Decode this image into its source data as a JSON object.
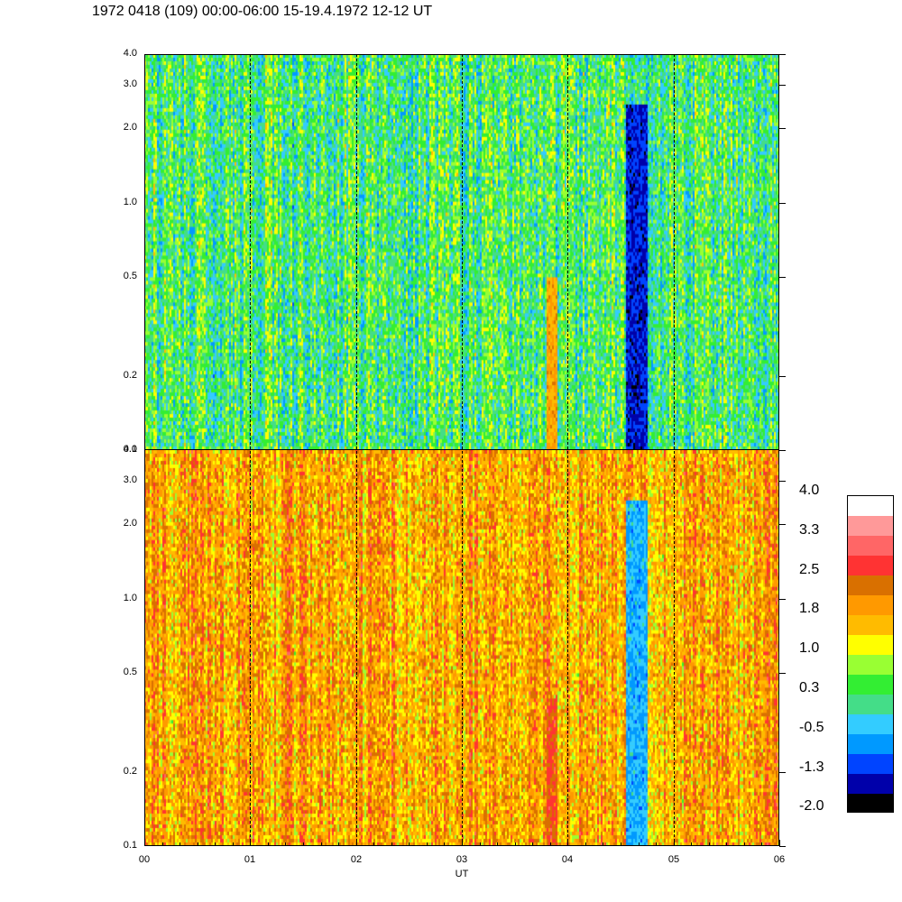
{
  "title": "1972 0418 (109) 00:00-06:00 15-19.4.1972  12-12 UT",
  "chart_data": [
    {
      "type": "heatmap",
      "panel": "top",
      "x_ticks": [
        "00",
        "01",
        "02",
        "03",
        "04",
        "05",
        "06"
      ],
      "x_range_hours": [
        0,
        6
      ],
      "y_ticks": [
        "0.1",
        "0.2",
        "0.5",
        "1.0",
        "2.0",
        "3.0",
        "4.0"
      ],
      "y_tick_values": [
        0.1,
        0.2,
        0.5,
        1.0,
        2.0,
        3.0,
        4.0
      ],
      "y_range": [
        0.1,
        4.0
      ],
      "y_scale": "log",
      "dominant_level": 0.3,
      "features": [
        {
          "x_start": 3.8,
          "x_end": 3.9,
          "y_start": 0.1,
          "y_end": 0.5,
          "level": 1.8
        },
        {
          "x_start": 4.55,
          "x_end": 4.75,
          "y_start": 0.1,
          "y_end": 2.5,
          "level": -1.3
        }
      ]
    },
    {
      "type": "heatmap",
      "panel": "bottom",
      "x_ticks": [
        "00",
        "01",
        "02",
        "03",
        "04",
        "05",
        "06"
      ],
      "x_range_hours": [
        0,
        6
      ],
      "y_ticks": [
        "0.1",
        "0.2",
        "0.5",
        "1.0",
        "2.0",
        "3.0",
        "4.0"
      ],
      "y_tick_values": [
        0.1,
        0.2,
        0.5,
        1.0,
        2.0,
        3.0,
        4.0
      ],
      "y_range": [
        0.1,
        4.0
      ],
      "y_scale": "log",
      "xlabel": "UT",
      "dominant_level": 1.8,
      "features": [
        {
          "x_start": 3.8,
          "x_end": 3.9,
          "y_start": 0.1,
          "y_end": 0.4,
          "level": 2.5
        },
        {
          "x_start": 4.55,
          "x_end": 4.75,
          "y_start": 0.1,
          "y_end": 2.5,
          "level": -0.5
        }
      ]
    }
  ],
  "dashed_lines_hours": [
    1,
    2,
    3,
    4,
    5
  ],
  "colorbar": {
    "labels": [
      "4.0",
      "3.3",
      "2.5",
      "1.8",
      "1.0",
      "0.3",
      "-0.5",
      "-1.3",
      "-2.0"
    ],
    "colors": [
      "#ffffff",
      "#ff9999",
      "#ff6666",
      "#ff3333",
      "#d97000",
      "#ff9900",
      "#ffbb00",
      "#ffff00",
      "#99ff33",
      "#33ee33",
      "#44dd88",
      "#33ccff",
      "#0099ff",
      "#0044ff",
      "#0000aa",
      "#000000"
    ]
  }
}
